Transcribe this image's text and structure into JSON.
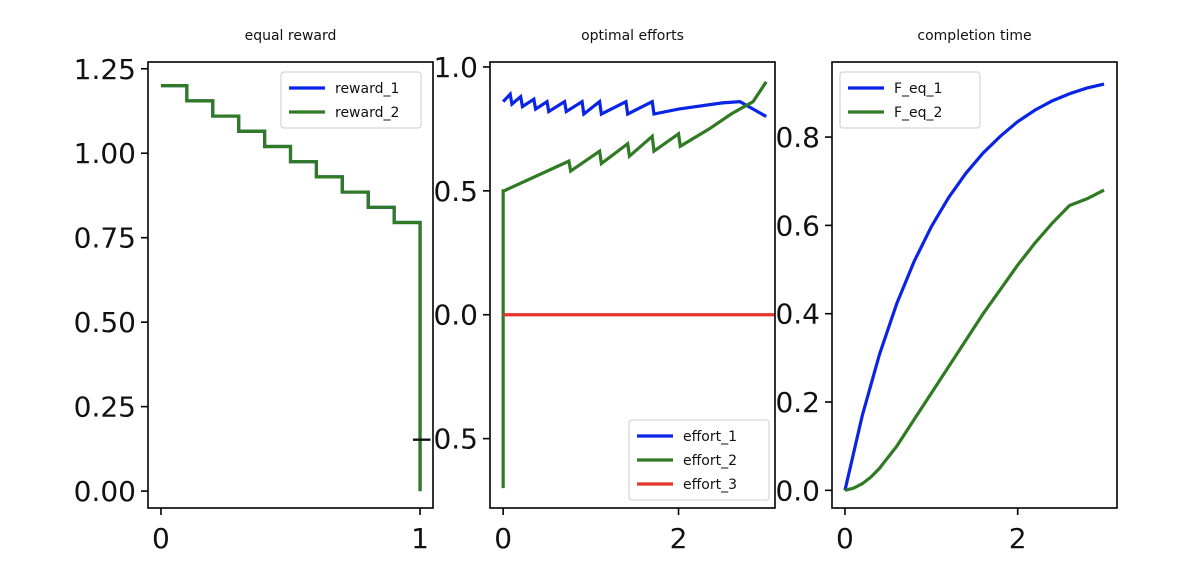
{
  "colors": {
    "blue": "#0a24e6",
    "green": "#2f7a22",
    "red": "#e5352b",
    "axis": "#000000"
  },
  "chart_data": [
    {
      "type": "line",
      "title": "equal reward",
      "xlabel": "",
      "ylabel": "",
      "xlim": [
        -0.05,
        1.05
      ],
      "ylim": [
        -0.05,
        1.27
      ],
      "xticks": [
        0,
        1
      ],
      "xtick_labels": [
        "0",
        "1"
      ],
      "yticks": [
        0,
        0.25,
        0.5,
        0.75,
        1.0,
        1.25
      ],
      "ytick_labels": [
        "0.00",
        "0.25",
        "0.50",
        "0.75",
        "1.00",
        "1.25"
      ],
      "legend": {
        "placement": "top-right",
        "entries": [
          "reward_1",
          "reward_2"
        ]
      },
      "series": [
        {
          "name": "reward_1",
          "color_key": "blue",
          "x": [
            0,
            0.1,
            0.1,
            0.2,
            0.2,
            0.3,
            0.3,
            0.4,
            0.4,
            0.5,
            0.5,
            0.6,
            0.6,
            0.7,
            0.7,
            0.8,
            0.8,
            0.9,
            0.9,
            1.0,
            1.0
          ],
          "y": [
            1.2,
            1.2,
            1.155,
            1.155,
            1.11,
            1.11,
            1.065,
            1.065,
            1.02,
            1.02,
            0.975,
            0.975,
            0.93,
            0.93,
            0.885,
            0.885,
            0.84,
            0.84,
            0.795,
            0.795,
            0.0
          ]
        },
        {
          "name": "reward_2",
          "color_key": "green",
          "x": [
            0,
            0.1,
            0.1,
            0.2,
            0.2,
            0.3,
            0.3,
            0.4,
            0.4,
            0.5,
            0.5,
            0.6,
            0.6,
            0.7,
            0.7,
            0.8,
            0.8,
            0.9,
            0.9,
            1.0,
            1.0
          ],
          "y": [
            1.2,
            1.2,
            1.155,
            1.155,
            1.11,
            1.11,
            1.065,
            1.065,
            1.02,
            1.02,
            0.975,
            0.975,
            0.93,
            0.93,
            0.885,
            0.885,
            0.84,
            0.84,
            0.795,
            0.795,
            0.0
          ]
        }
      ]
    },
    {
      "type": "line",
      "title": "optimal efforts",
      "xlabel": "",
      "ylabel": "",
      "xlim": [
        -0.15,
        3.1
      ],
      "ylim": [
        -0.78,
        1.02
      ],
      "xticks": [
        0,
        2
      ],
      "xtick_labels": [
        "0",
        "2"
      ],
      "yticks": [
        -0.5,
        0.0,
        0.5,
        1.0
      ],
      "ytick_labels": [
        "−0.5",
        "0.0",
        "0.5",
        "1.0"
      ],
      "legend": {
        "placement": "lower-right",
        "entries": [
          "effort_1",
          "effort_2",
          "effort_3"
        ]
      },
      "series": [
        {
          "name": "effort_1",
          "color_key": "blue",
          "x": [
            0.0,
            0.08,
            0.1,
            0.2,
            0.22,
            0.35,
            0.37,
            0.5,
            0.52,
            0.7,
            0.72,
            0.9,
            0.92,
            1.1,
            1.12,
            1.4,
            1.42,
            1.7,
            1.72,
            2.0,
            2.5,
            2.7,
            3.0
          ],
          "y": [
            0.86,
            0.89,
            0.85,
            0.88,
            0.84,
            0.87,
            0.83,
            0.86,
            0.82,
            0.86,
            0.82,
            0.86,
            0.81,
            0.86,
            0.81,
            0.86,
            0.81,
            0.86,
            0.81,
            0.83,
            0.855,
            0.86,
            0.8
          ]
        },
        {
          "name": "effort_2",
          "color_key": "green",
          "x": [
            0.0,
            0.0,
            0.01,
            0.75,
            0.77,
            1.1,
            1.12,
            1.42,
            1.44,
            1.7,
            1.72,
            2.0,
            2.02,
            2.35,
            2.6,
            2.85,
            3.0
          ],
          "y": [
            -0.7,
            0.5,
            0.5,
            0.62,
            0.58,
            0.66,
            0.61,
            0.69,
            0.64,
            0.72,
            0.66,
            0.73,
            0.68,
            0.75,
            0.81,
            0.86,
            0.94
          ]
        },
        {
          "name": "effort_3",
          "color_key": "red",
          "x": [
            0.0,
            3.1
          ],
          "y": [
            0.0,
            0.0
          ]
        }
      ]
    },
    {
      "type": "line",
      "title": "completion time",
      "xlabel": "",
      "ylabel": "",
      "xlim": [
        -0.15,
        3.15
      ],
      "ylim": [
        -0.04,
        0.97
      ],
      "xticks": [
        0,
        2
      ],
      "xtick_labels": [
        "0",
        "2"
      ],
      "yticks": [
        0.0,
        0.2,
        0.4,
        0.6,
        0.8
      ],
      "ytick_labels": [
        "0.0",
        "0.2",
        "0.4",
        "0.6",
        "0.8"
      ],
      "legend": {
        "placement": "top-left",
        "entries": [
          "F_eq_1",
          "F_eq_2"
        ]
      },
      "series": [
        {
          "name": "F_eq_1",
          "color_key": "blue",
          "x": [
            0.0,
            0.2,
            0.4,
            0.6,
            0.8,
            1.0,
            1.2,
            1.4,
            1.6,
            1.8,
            2.0,
            2.2,
            2.4,
            2.6,
            2.8,
            3.0
          ],
          "y": [
            0.0,
            0.169,
            0.308,
            0.423,
            0.518,
            0.597,
            0.663,
            0.718,
            0.764,
            0.802,
            0.835,
            0.861,
            0.882,
            0.898,
            0.911,
            0.92
          ]
        },
        {
          "name": "F_eq_2",
          "color_key": "green",
          "x": [
            0.0,
            0.1,
            0.2,
            0.3,
            0.4,
            0.6,
            0.8,
            1.0,
            1.2,
            1.4,
            1.6,
            1.8,
            2.0,
            2.2,
            2.4,
            2.6,
            2.8,
            3.0
          ],
          "y": [
            0.0,
            0.005,
            0.015,
            0.03,
            0.05,
            0.1,
            0.16,
            0.22,
            0.28,
            0.34,
            0.4,
            0.455,
            0.51,
            0.56,
            0.605,
            0.645,
            0.66,
            0.68
          ]
        }
      ]
    }
  ]
}
